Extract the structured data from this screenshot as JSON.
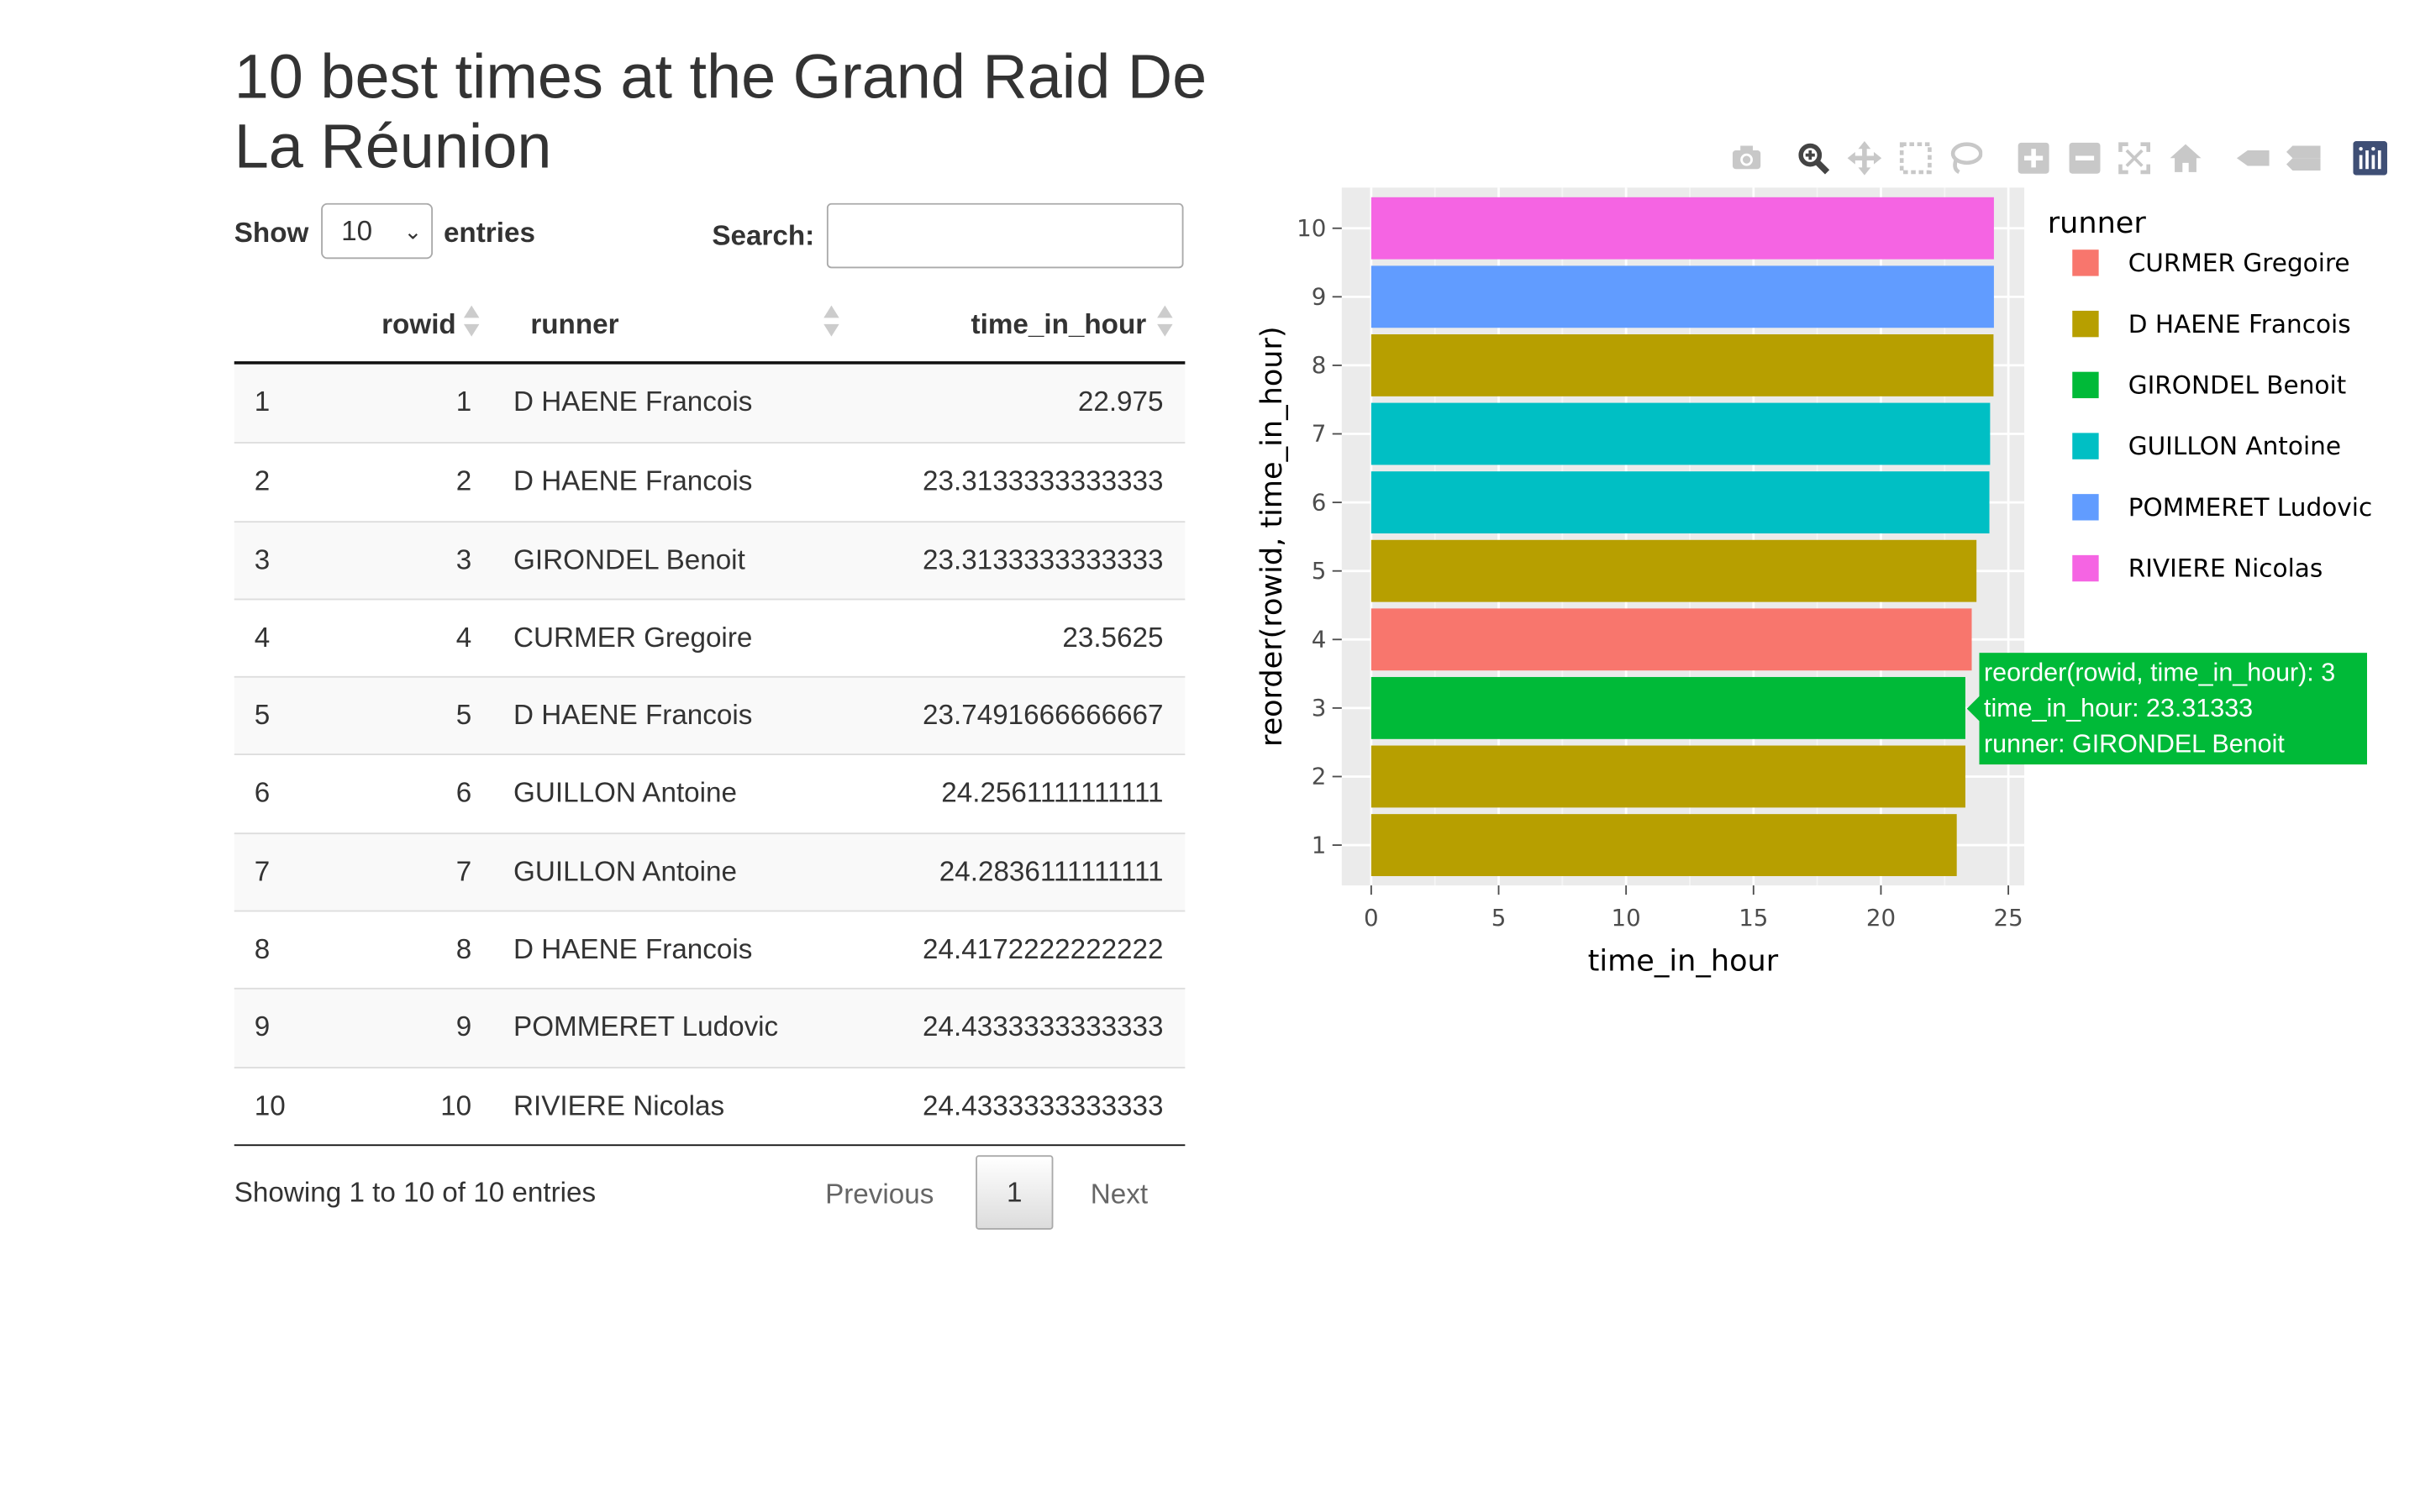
{
  "page_title": "10 best times at the Grand Raid De La Réunion",
  "length_control": {
    "show_label": "Show",
    "selected": "10",
    "entries_label": "entries"
  },
  "search": {
    "label": "Search:",
    "value": ""
  },
  "table": {
    "headers": [
      "",
      "rowid",
      "runner",
      "time_in_hour"
    ],
    "rows": [
      [
        "1",
        "1",
        "D HAENE Francois",
        "22.975"
      ],
      [
        "2",
        "2",
        "D HAENE Francois",
        "23.3133333333333"
      ],
      [
        "3",
        "3",
        "GIRONDEL Benoit",
        "23.3133333333333"
      ],
      [
        "4",
        "4",
        "CURMER Gregoire",
        "23.5625"
      ],
      [
        "5",
        "5",
        "D HAENE Francois",
        "23.7491666666667"
      ],
      [
        "6",
        "6",
        "GUILLON Antoine",
        "24.2561111111111"
      ],
      [
        "7",
        "7",
        "GUILLON Antoine",
        "24.2836111111111"
      ],
      [
        "8",
        "8",
        "D HAENE Francois",
        "24.4172222222222"
      ],
      [
        "9",
        "9",
        "POMMERET Ludovic",
        "24.4333333333333"
      ],
      [
        "10",
        "10",
        "RIVIERE Nicolas",
        "24.4333333333333"
      ]
    ]
  },
  "table_info": "Showing 1 to 10 of 10 entries",
  "pagination": {
    "previous": "Previous",
    "current": "1",
    "next": "Next"
  },
  "toolbar": [
    "camera-icon",
    "zoom-icon",
    "pan-icon",
    "box-select-icon",
    "lasso-select-icon",
    "zoom-in-icon",
    "zoom-out-icon",
    "autoscale-icon",
    "reset-axes-icon",
    "spike-lines-icon",
    "compare-hover-icon",
    "plotly-logo-icon"
  ],
  "chart_data": {
    "type": "bar",
    "orientation": "horizontal",
    "xlabel": "time_in_hour",
    "ylabel": "reorder(rowid, time_in_hour)",
    "xlim": [
      0,
      25
    ],
    "x_ticks": [
      "0",
      "5",
      "10",
      "15",
      "20",
      "25"
    ],
    "categories": [
      "1",
      "2",
      "3",
      "4",
      "5",
      "6",
      "7",
      "8",
      "9",
      "10"
    ],
    "values": [
      22.975,
      23.3133333333333,
      23.3133333333333,
      23.5625,
      23.7491666666667,
      24.2561111111111,
      24.2836111111111,
      24.4172222222222,
      24.4333333333333,
      24.4333333333333
    ],
    "bar_runner": [
      "D HAENE Francois",
      "D HAENE Francois",
      "GIRONDEL Benoit",
      "CURMER Gregoire",
      "D HAENE Francois",
      "GUILLON Antoine",
      "GUILLON Antoine",
      "D HAENE Francois",
      "POMMERET Ludovic",
      "RIVIERE Nicolas"
    ],
    "legend_title": "runner",
    "legend": [
      {
        "name": "CURMER Gregoire",
        "color": "#f8766d"
      },
      {
        "name": "D HAENE Francois",
        "color": "#b79f00"
      },
      {
        "name": "GIRONDEL Benoit",
        "color": "#00ba38"
      },
      {
        "name": "GUILLON Antoine",
        "color": "#00bfc4"
      },
      {
        "name": "POMMERET Ludovic",
        "color": "#619cff"
      },
      {
        "name": "RIVIERE Nicolas",
        "color": "#f564e3"
      }
    ],
    "grid": true,
    "legend_position": "right"
  },
  "tooltip": {
    "line1": "reorder(rowid, time_in_hour): 3",
    "line2": "time_in_hour: 23.31333",
    "line3": "runner: GIRONDEL Benoit"
  }
}
